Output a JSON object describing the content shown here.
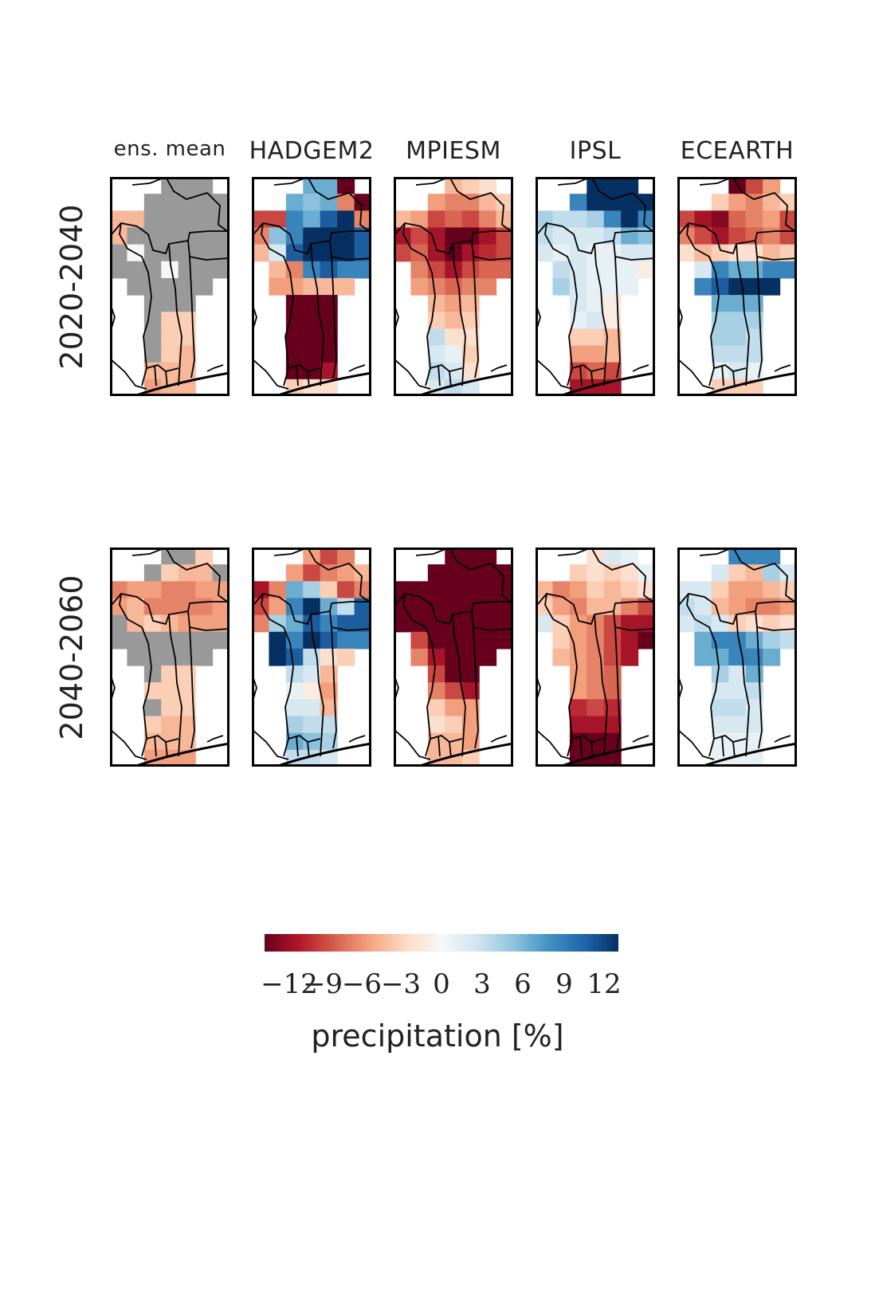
{
  "chart_data": {
    "type": "heatmap",
    "columns": [
      "ens. mean",
      "HADGEM2",
      "MPIESM",
      "IPSL",
      "ECEARTH"
    ],
    "rows": [
      "2020-2040",
      "2040-2060"
    ],
    "colorbar": {
      "label": "precipitation [%]",
      "ticks": [
        "−12",
        "−9",
        "−6",
        "−3",
        "0",
        "3",
        "6",
        "9",
        "12"
      ],
      "vmin": -12,
      "vmax": 12,
      "colormap": "RdBu",
      "colors": [
        "#67001f",
        "#b2182b",
        "#d6604d",
        "#f4a582",
        "#fddbc7",
        "#f7f7f7",
        "#d1e5f0",
        "#92c5de",
        "#4393c3",
        "#2166ac",
        "#053061"
      ]
    },
    "masked_color": "#999999",
    "panels": [
      {
        "row": "2020-2040",
        "column": "ens. mean",
        "values": [
          [
            "n",
            "n",
            "n",
            "M",
            "M",
            "M",
            "n"
          ],
          [
            "n",
            "n",
            "M",
            "M",
            "M",
            "M",
            "M"
          ],
          [
            -4,
            -4,
            "M",
            "M",
            "M",
            "M",
            "M"
          ],
          [
            -4,
            "M",
            "M",
            "M",
            "M",
            "M",
            "M"
          ],
          [
            "M",
            0,
            "M",
            "M",
            "M",
            "M",
            "M"
          ],
          [
            "M",
            "M",
            "M",
            0,
            "M",
            "M",
            "M"
          ],
          [
            "n",
            "M",
            "M",
            "M",
            "M",
            "M",
            "n"
          ],
          [
            "n",
            "n",
            "M",
            "M",
            "M",
            "n",
            "n"
          ],
          [
            "n",
            "n",
            "M",
            -3,
            -3,
            "n",
            "n"
          ],
          [
            "n",
            "n",
            "M",
            -3,
            -3,
            "n",
            "n"
          ],
          [
            "n",
            "n",
            "M",
            -3,
            -4,
            "n",
            "n"
          ],
          [
            "n",
            "n",
            -4,
            -4,
            -4,
            "n",
            "n"
          ],
          [
            "n",
            "n",
            -5,
            -4,
            -4,
            "n",
            "n"
          ]
        ]
      },
      {
        "row": "2020-2040",
        "column": "HADGEM2",
        "values": [
          [
            "n",
            "n",
            "n",
            6,
            6,
            -12,
            "n"
          ],
          [
            "n",
            "n",
            6,
            5,
            6,
            -6,
            -12
          ],
          [
            -8,
            -8,
            8,
            6,
            10,
            12,
            -6
          ],
          [
            -6,
            5,
            8,
            12,
            12,
            12,
            10
          ],
          [
            -4,
            2,
            10,
            12,
            12,
            12,
            10
          ],
          [
            "n",
            -4,
            -6,
            8,
            10,
            8,
            8
          ],
          [
            "n",
            -5,
            -5,
            -4,
            -4,
            -4,
            "n"
          ],
          [
            "n",
            "n",
            -12,
            -12,
            -12,
            "n",
            "n"
          ],
          [
            "n",
            "n",
            -12,
            -12,
            -12,
            "n",
            "n"
          ],
          [
            "n",
            "n",
            -12,
            -12,
            -12,
            "n",
            "n"
          ],
          [
            "n",
            "n",
            -12,
            -12,
            -12,
            "n",
            "n"
          ],
          [
            "n",
            "n",
            -12,
            -12,
            -10,
            "n",
            "n"
          ],
          [
            "n",
            "n",
            -3,
            -2,
            -2,
            "n",
            "n"
          ]
        ]
      },
      {
        "row": "2020-2040",
        "column": "MPIESM",
        "values": [
          [
            "n",
            "n",
            "n",
            -4,
            -3,
            -2,
            "n"
          ],
          [
            "n",
            "n",
            -5,
            -6,
            -6,
            -4,
            -3
          ],
          [
            -4,
            -5,
            -8,
            -7,
            -8,
            -6,
            -4
          ],
          [
            -10,
            -8,
            -10,
            -12,
            -12,
            -10,
            -8
          ],
          [
            -8,
            -7,
            -10,
            -12,
            -10,
            -9,
            -8
          ],
          [
            "n",
            -6,
            -8,
            -10,
            -8,
            -7,
            -7
          ],
          [
            "n",
            -5,
            -6,
            -7,
            -6,
            -6,
            "n"
          ],
          [
            "n",
            "n",
            -4,
            -5,
            -4,
            "n",
            "n"
          ],
          [
            "n",
            "n",
            -3,
            -4,
            -3,
            "n",
            "n"
          ],
          [
            "n",
            "n",
            3,
            -2,
            -2,
            "n",
            "n"
          ],
          [
            "n",
            "n",
            2,
            1,
            -3,
            "n",
            "n"
          ],
          [
            "n",
            "n",
            3,
            2,
            -2,
            "n",
            "n"
          ],
          [
            "n",
            "n",
            2,
            3,
            2,
            "n",
            "n"
          ]
        ]
      },
      {
        "row": "2020-2040",
        "column": "IPSL",
        "values": [
          [
            "n",
            "n",
            "n",
            12,
            12,
            12,
            "n"
          ],
          [
            "n",
            "n",
            8,
            12,
            12,
            12,
            12
          ],
          [
            4,
            3,
            3,
            4,
            8,
            12,
            8
          ],
          [
            3,
            2,
            2,
            2,
            3,
            6,
            5
          ],
          [
            2,
            1,
            2,
            1,
            1,
            2,
            2
          ],
          [
            "n",
            3,
            2,
            1,
            1,
            1,
            -1
          ],
          [
            "n",
            4,
            2,
            1,
            1,
            1,
            "n"
          ],
          [
            "n",
            "n",
            2,
            1,
            -1,
            "n",
            "n"
          ],
          [
            "n",
            "n",
            1,
            2,
            -1,
            "n",
            "n"
          ],
          [
            "n",
            "n",
            -3,
            -3,
            -4,
            "n",
            "n"
          ],
          [
            "n",
            "n",
            -5,
            -5,
            -4,
            "n",
            "n"
          ],
          [
            "n",
            "n",
            -8,
            -7,
            -8,
            "n",
            "n"
          ],
          [
            "n",
            "n",
            -10,
            -10,
            -10,
            "n",
            "n"
          ]
        ]
      },
      {
        "row": "2020-2040",
        "column": "ECEARTH",
        "values": [
          [
            "n",
            "n",
            "n",
            -12,
            -8,
            -5,
            "n"
          ],
          [
            "n",
            "n",
            -3,
            -5,
            -6,
            -4,
            -3
          ],
          [
            -8,
            -10,
            -11,
            -7,
            -6,
            -5,
            -8
          ],
          [
            -6,
            -8,
            -10,
            -8,
            -7,
            -6,
            -8
          ],
          [
            -2,
            -4,
            -3,
            -2,
            -2,
            -4,
            -3
          ],
          [
            "n",
            2,
            8,
            6,
            6,
            8,
            8
          ],
          [
            "n",
            8,
            10,
            12,
            12,
            12,
            "n"
          ],
          [
            "n",
            "n",
            6,
            6,
            6,
            "n",
            "n"
          ],
          [
            "n",
            "n",
            4,
            4,
            4,
            "n",
            "n"
          ],
          [
            "n",
            "n",
            4,
            4,
            3,
            "n",
            "n"
          ],
          [
            "n",
            "n",
            3,
            3,
            3,
            "n",
            "n"
          ],
          [
            "n",
            "n",
            1,
            2,
            1,
            "n",
            "n"
          ],
          [
            "n",
            "n",
            -3,
            -3,
            -3,
            "n",
            "n"
          ]
        ]
      },
      {
        "row": "2040-2060",
        "column": "ens. mean",
        "values": [
          [
            "n",
            "n",
            "n",
            "M",
            "M",
            -3,
            "n"
          ],
          [
            "n",
            "n",
            "M",
            -3,
            -4,
            -4,
            "M"
          ],
          [
            -6,
            -5,
            -5,
            -6,
            -6,
            -5,
            -5
          ],
          [
            -5,
            -4,
            -6,
            -6,
            -6,
            -6,
            -5
          ],
          [
            "M",
            -4,
            -3,
            -4,
            -5,
            -5,
            -5
          ],
          [
            "M",
            "M",
            "M",
            "M",
            "M",
            "M",
            "M"
          ],
          [
            "n",
            "M",
            "M",
            "M",
            "M",
            "M",
            "n"
          ],
          [
            "n",
            "n",
            "M",
            -3,
            -3,
            "n",
            "n"
          ],
          [
            "n",
            "n",
            -3,
            -3,
            -3,
            "n",
            "n"
          ],
          [
            "n",
            "n",
            "M",
            -3,
            -3,
            "n",
            "n"
          ],
          [
            "n",
            "n",
            -3,
            -4,
            -4,
            "n",
            "n"
          ],
          [
            "n",
            "n",
            -4,
            -4,
            -4,
            "n",
            "n"
          ],
          [
            "n",
            "n",
            -5,
            -5,
            -5,
            "n",
            "n"
          ]
        ]
      },
      {
        "row": "2040-2060",
        "column": "HADGEM2",
        "values": [
          [
            "n",
            "n",
            "n",
            -5,
            -8,
            -6,
            "n"
          ],
          [
            "n",
            "n",
            -5,
            -8,
            -6,
            -5,
            -4
          ],
          [
            -10,
            -6,
            6,
            4,
            -3,
            -8,
            -6
          ],
          [
            -8,
            -5,
            8,
            12,
            6,
            3,
            10
          ],
          [
            -6,
            4,
            6,
            10,
            8,
            10,
            10
          ],
          [
            "n",
            12,
            8,
            12,
            10,
            8,
            8
          ],
          [
            "n",
            12,
            10,
            3,
            -2,
            -3,
            "n"
          ],
          [
            "n",
            "n",
            3,
            2,
            -4,
            "n",
            "n"
          ],
          [
            "n",
            "n",
            1,
            -1,
            -5,
            "n",
            "n"
          ],
          [
            "n",
            "n",
            2,
            2,
            -4,
            "n",
            "n"
          ],
          [
            "n",
            "n",
            4,
            3,
            3,
            "n",
            "n"
          ],
          [
            "n",
            "n",
            6,
            5,
            4,
            "n",
            "n"
          ],
          [
            "n",
            "n",
            3,
            3,
            2,
            "n",
            "n"
          ]
        ]
      },
      {
        "row": "2040-2060",
        "column": "MPIESM",
        "values": [
          [
            "n",
            "n",
            "n",
            -12,
            -12,
            -12,
            "n"
          ],
          [
            "n",
            "n",
            -12,
            -12,
            -12,
            -12,
            -12
          ],
          [
            -12,
            -12,
            -12,
            -12,
            -12,
            -12,
            -12
          ],
          [
            -12,
            -12,
            -12,
            -12,
            -12,
            -12,
            -12
          ],
          [
            -12,
            -12,
            -12,
            -12,
            -12,
            -12,
            -12
          ],
          [
            "n",
            -8,
            -12,
            -12,
            -12,
            -12,
            -12
          ],
          [
            "n",
            -6,
            -10,
            -12,
            -12,
            -12,
            "n"
          ],
          [
            "n",
            "n",
            -8,
            -12,
            -12,
            "n",
            "n"
          ],
          [
            "n",
            "n",
            -6,
            -8,
            -10,
            "n",
            "n"
          ],
          [
            "n",
            "n",
            -3,
            -5,
            -5,
            "n",
            "n"
          ],
          [
            "n",
            "n",
            -2,
            -3,
            -5,
            "n",
            "n"
          ],
          [
            "n",
            "n",
            -4,
            -4,
            -5,
            "n",
            "n"
          ],
          [
            "n",
            "n",
            -4,
            -4,
            -3,
            "n",
            "n"
          ]
        ]
      },
      {
        "row": "2040-2060",
        "column": "IPSL",
        "values": [
          [
            "n",
            "n",
            "n",
            -2,
            2,
            1,
            "n"
          ],
          [
            "n",
            "n",
            -3,
            -2,
            -3,
            -2,
            1
          ],
          [
            -4,
            -6,
            -5,
            -3,
            -4,
            -3,
            -2
          ],
          [
            -3,
            -5,
            -6,
            -4,
            -4,
            -6,
            -8
          ],
          [
            2,
            -3,
            -5,
            -6,
            -8,
            -10,
            -10
          ],
          [
            "n",
            -3,
            -5,
            -6,
            -8,
            -10,
            -12
          ],
          [
            "n",
            -4,
            -5,
            -6,
            -8,
            -10,
            "n"
          ],
          [
            "n",
            "n",
            -5,
            -6,
            -7,
            "n",
            "n"
          ],
          [
            "n",
            "n",
            -5,
            -6,
            -7,
            "n",
            "n"
          ],
          [
            "n",
            "n",
            -9,
            -8,
            -9,
            "n",
            "n"
          ],
          [
            "n",
            "n",
            -10,
            -10,
            -10,
            "n",
            "n"
          ],
          [
            "n",
            "n",
            -12,
            -12,
            -12,
            "n",
            "n"
          ],
          [
            "n",
            "n",
            -12,
            -12,
            -12,
            "n",
            "n"
          ]
        ]
      },
      {
        "row": "2040-2060",
        "column": "ECEARTH",
        "values": [
          [
            "n",
            "n",
            "n",
            8,
            8,
            8,
            "n"
          ],
          [
            "n",
            "n",
            2,
            -3,
            -4,
            4,
            2
          ],
          [
            2,
            2,
            -3,
            -5,
            -5,
            -4,
            -3
          ],
          [
            3,
            2,
            -4,
            -5,
            -6,
            -6,
            -5
          ],
          [
            2,
            3,
            2,
            -3,
            -2,
            -3,
            -2
          ],
          [
            "n",
            6,
            8,
            8,
            6,
            4,
            3
          ],
          [
            "n",
            6,
            6,
            8,
            8,
            6,
            "n"
          ],
          [
            "n",
            "n",
            4,
            2,
            6,
            "n",
            "n"
          ],
          [
            "n",
            "n",
            2,
            2,
            3,
            "n",
            "n"
          ],
          [
            "n",
            "n",
            3,
            3,
            2,
            "n",
            "n"
          ],
          [
            "n",
            "n",
            2,
            2,
            2,
            "n",
            "n"
          ],
          [
            "n",
            "n",
            1,
            1,
            1,
            "n",
            "n"
          ],
          [
            "n",
            "n",
            1,
            1,
            1,
            "n",
            "n"
          ]
        ]
      }
    ]
  }
}
